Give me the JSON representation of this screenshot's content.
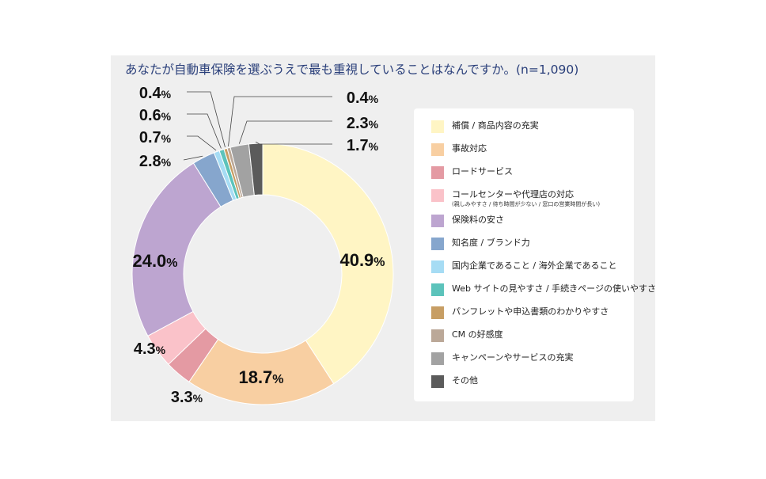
{
  "chart_data": {
    "type": "pie",
    "title": "あなたが自動車保険を選ぶうえで最も重視していることはなんですか。(n=1,090)",
    "series": [
      {
        "name": "補償 / 商品内容の充実",
        "value": 40.9,
        "label": "40.9",
        "color": "#fff5c4"
      },
      {
        "name": "事故対応",
        "value": 18.7,
        "label": "18.7",
        "color": "#f8cfa2"
      },
      {
        "name": "ロードサービス",
        "value": 3.3,
        "label": "3.3",
        "color": "#e49aa3"
      },
      {
        "name": "コールセンターや代理店の対応",
        "note": "(親しみやすさ / 待ち時間が少ない / 窓口の営業時間が長い)",
        "value": 4.3,
        "label": "4.3",
        "color": "#fac2c9"
      },
      {
        "name": "保険料の安さ",
        "value": 24.0,
        "label": "24.0",
        "color": "#bda5d0"
      },
      {
        "name": "知名度 / ブランド力",
        "value": 2.8,
        "label": "2.8",
        "color": "#86a6cd"
      },
      {
        "name": "国内企業であること / 海外企業であること",
        "value": 0.7,
        "label": "0.7",
        "color": "#a6dcf4"
      },
      {
        "name": "Web サイトの見やすさ / 手続きページの使いやすさ",
        "value": 0.6,
        "label": "0.6",
        "color": "#5cc3bb"
      },
      {
        "name": "パンフレットや申込書類のわかりやすさ",
        "value": 0.4,
        "label": "0.4",
        "color": "#c79e64"
      },
      {
        "name": "CM の好感度",
        "value": 0.4,
        "label": "0.4",
        "color": "#bba898"
      },
      {
        "name": "キャンペーンやサービスの充実",
        "value": 2.3,
        "label": "2.3",
        "color": "#a2a2a2"
      },
      {
        "name": "その他",
        "value": 1.7,
        "label": "1.7",
        "color": "#5b5b5b"
      }
    ],
    "unit": "%"
  }
}
